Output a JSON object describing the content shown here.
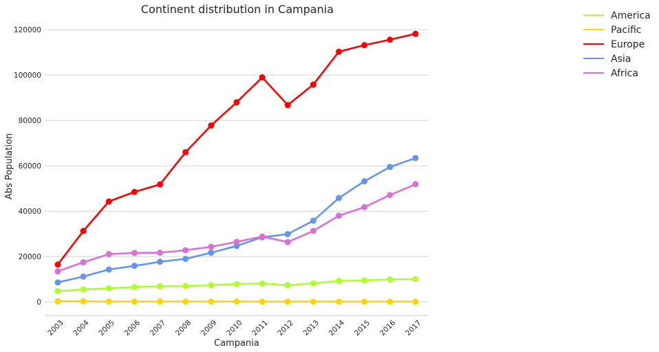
{
  "chart_data": {
    "type": "line",
    "title": "Continent distribution in Campania",
    "xlabel": "Campania",
    "ylabel": "Abs Population",
    "x": [
      "2003",
      "2004",
      "2005",
      "2006",
      "2007",
      "2008",
      "2009",
      "2010",
      "2011",
      "2012",
      "2013",
      "2014",
      "2015",
      "2016",
      "2017"
    ],
    "ylim": [
      -6000,
      124000
    ],
    "yticks": [
      0,
      20000,
      40000,
      60000,
      80000,
      100000,
      120000
    ],
    "grid": true,
    "legend_position": "upper-right-outside",
    "series": [
      {
        "name": "America",
        "color": "#adff2f",
        "values": [
          4800,
          5500,
          6000,
          6600,
          6900,
          7000,
          7400,
          7900,
          8100,
          7400,
          8200,
          9300,
          9500,
          9900,
          10100
        ]
      },
      {
        "name": "Pacific",
        "color": "#ffd700",
        "values": [
          300,
          300,
          200,
          200,
          200,
          200,
          200,
          200,
          150,
          150,
          150,
          150,
          150,
          150,
          150
        ]
      },
      {
        "name": "Europe",
        "color": "#ff0000",
        "values": [
          16500,
          31300,
          44300,
          48500,
          51800,
          66000,
          77800,
          88000,
          99000,
          86800,
          95800,
          110300,
          113200,
          115600,
          118200
        ]
      },
      {
        "name": "Asia",
        "color": "#6495ed",
        "values": [
          8600,
          11200,
          14300,
          15900,
          17700,
          19000,
          21700,
          24700,
          28500,
          29900,
          35800,
          45800,
          53200,
          59500,
          63400
        ]
      },
      {
        "name": "Africa",
        "color": "#da70d6",
        "values": [
          13500,
          17500,
          21100,
          21600,
          21700,
          22800,
          24300,
          26500,
          28800,
          26400,
          31300,
          38000,
          41800,
          47100,
          51900
        ]
      }
    ]
  }
}
